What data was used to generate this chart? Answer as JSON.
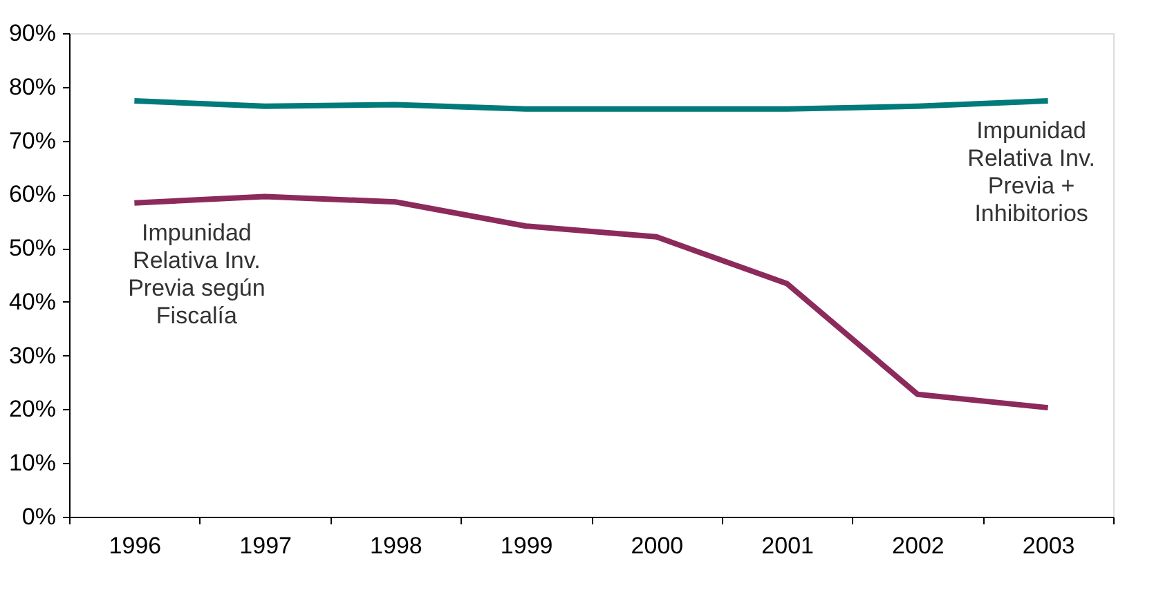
{
  "chart_data": {
    "type": "line",
    "categories": [
      "1996",
      "1997",
      "1998",
      "1999",
      "2000",
      "2001",
      "2002",
      "2003"
    ],
    "series": [
      {
        "name": "Impunidad Relativa Inv. Previa + Inhibitorios",
        "color": "#007a7a",
        "values": [
          77.4,
          76.4,
          76.7,
          75.9,
          75.9,
          75.9,
          76.4,
          77.4
        ]
      },
      {
        "name": "Impunidad Relativa Inv. Previa según Fiscalía",
        "color": "#8c2a5c",
        "values": [
          58.4,
          59.6,
          58.6,
          54.1,
          52.1,
          43.4,
          22.8,
          20.3
        ]
      }
    ],
    "ylim": [
      0,
      90
    ],
    "yticks": [
      {
        "value": 0,
        "label": "0%"
      },
      {
        "value": 10,
        "label": "10%"
      },
      {
        "value": 20,
        "label": "20%"
      },
      {
        "value": 30,
        "label": "30%"
      },
      {
        "value": 40,
        "label": "40%"
      },
      {
        "value": 50,
        "label": "50%"
      },
      {
        "value": 60,
        "label": "60%"
      },
      {
        "value": 70,
        "label": "70%"
      },
      {
        "value": 80,
        "label": "80%"
      },
      {
        "value": 90,
        "label": "90%"
      }
    ],
    "grid": false,
    "marker": "none",
    "line_style": "solid"
  }
}
